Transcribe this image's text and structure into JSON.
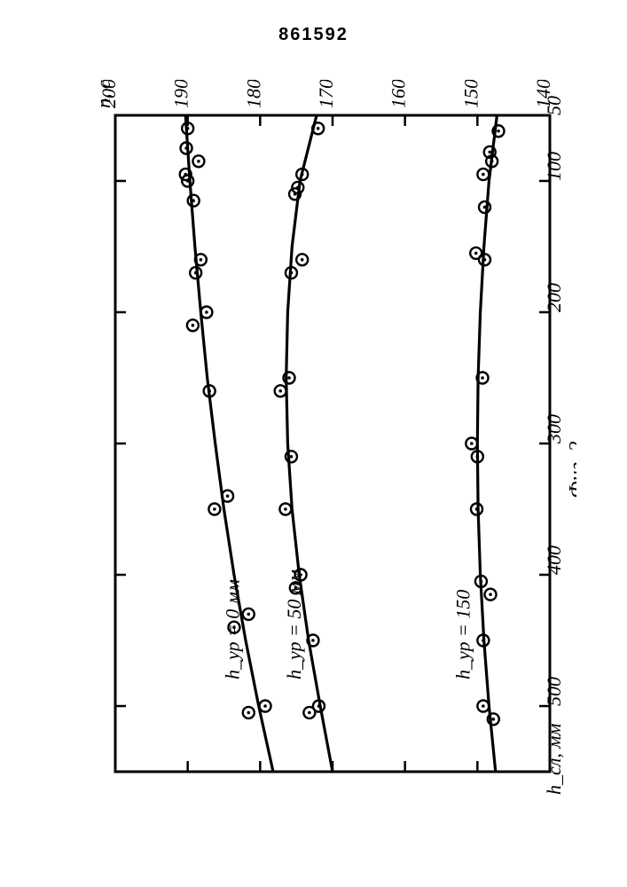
{
  "doc_number": "861592",
  "figure_label": "Фиг. 2",
  "chart": {
    "type": "scatter",
    "orientation": "rotated-90-ccw",
    "background_color": "#ffffff",
    "line_color": "#000000",
    "line_width": 3.2,
    "marker": {
      "outer_r": 6.5,
      "inner_r": 1.8,
      "stroke_width": 2.4,
      "color": "#000000"
    },
    "border_width": 3,
    "x_axis": {
      "label": "h_сл, мм",
      "min": 50,
      "max": 550,
      "ticks": [
        50,
        100,
        200,
        300,
        400,
        500
      ]
    },
    "y_axis": {
      "label": "n, с⁻¹",
      "min": 140,
      "max": 200,
      "ticks": [
        140,
        150,
        160,
        170,
        180,
        190,
        200
      ]
    },
    "series": [
      {
        "label": "h_ур = 0 мм",
        "curve": [
          [
            50,
            190.3
          ],
          [
            100,
            189.7
          ],
          [
            150,
            189.0
          ],
          [
            200,
            188.2
          ],
          [
            250,
            187.3
          ],
          [
            300,
            186.2
          ],
          [
            350,
            185.0
          ],
          [
            400,
            183.6
          ],
          [
            450,
            182.0
          ],
          [
            500,
            180.2
          ],
          [
            550,
            178.2
          ]
        ],
        "points": [
          [
            60,
            190.0
          ],
          [
            75,
            190.2
          ],
          [
            85,
            188.5
          ],
          [
            95,
            190.3
          ],
          [
            100,
            190.0
          ],
          [
            115,
            189.2
          ],
          [
            160,
            188.2
          ],
          [
            170,
            188.9
          ],
          [
            200,
            187.4
          ],
          [
            210,
            189.3
          ],
          [
            260,
            187.0
          ],
          [
            340,
            184.5
          ],
          [
            350,
            186.3
          ],
          [
            430,
            181.6
          ],
          [
            440,
            183.6
          ],
          [
            500,
            179.3
          ],
          [
            505,
            181.6
          ]
        ]
      },
      {
        "label": "h_ур = 50 мм",
        "curve": [
          [
            50,
            172.2
          ],
          [
            100,
            174.5
          ],
          [
            150,
            175.6
          ],
          [
            200,
            176.2
          ],
          [
            250,
            176.4
          ],
          [
            300,
            176.2
          ],
          [
            350,
            175.6
          ],
          [
            400,
            174.6
          ],
          [
            450,
            173.3
          ],
          [
            500,
            171.7
          ],
          [
            550,
            170.0
          ]
        ],
        "points": [
          [
            60,
            172.0
          ],
          [
            95,
            174.2
          ],
          [
            105,
            174.8
          ],
          [
            110,
            175.2
          ],
          [
            160,
            174.2
          ],
          [
            170,
            175.7
          ],
          [
            250,
            176.0
          ],
          [
            260,
            177.2
          ],
          [
            310,
            175.7
          ],
          [
            350,
            176.5
          ],
          [
            400,
            174.4
          ],
          [
            410,
            175.1
          ],
          [
            450,
            172.7
          ],
          [
            500,
            171.9
          ],
          [
            505,
            173.2
          ]
        ]
      },
      {
        "label": "h_ур = 150",
        "curve": [
          [
            50,
            147.3
          ],
          [
            100,
            148.4
          ],
          [
            150,
            149.1
          ],
          [
            200,
            149.6
          ],
          [
            250,
            149.9
          ],
          [
            300,
            150.0
          ],
          [
            350,
            149.9
          ],
          [
            400,
            149.6
          ],
          [
            450,
            149.1
          ],
          [
            500,
            148.4
          ],
          [
            550,
            147.5
          ]
        ],
        "points": [
          [
            62,
            147.1
          ],
          [
            78,
            148.3
          ],
          [
            85,
            148.0
          ],
          [
            95,
            149.2
          ],
          [
            120,
            149.0
          ],
          [
            155,
            150.2
          ],
          [
            160,
            149.0
          ],
          [
            250,
            149.3
          ],
          [
            300,
            150.8
          ],
          [
            310,
            150.0
          ],
          [
            350,
            150.1
          ],
          [
            405,
            149.5
          ],
          [
            415,
            148.2
          ],
          [
            450,
            149.2
          ],
          [
            500,
            149.2
          ],
          [
            510,
            147.8
          ]
        ]
      }
    ]
  }
}
